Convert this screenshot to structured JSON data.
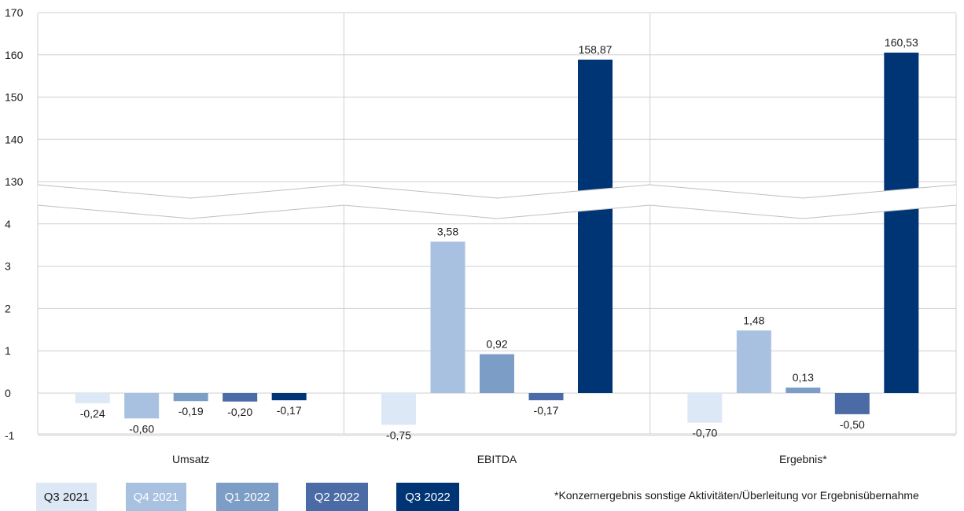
{
  "chart_data": {
    "type": "bar",
    "categories": [
      "Umsatz",
      "EBITDA",
      "Ergebnis*"
    ],
    "series": [
      {
        "name": "Q3 2021",
        "color": "#dde8f6",
        "values": [
          -0.24,
          -0.75,
          -0.7
        ],
        "labels": [
          "-0,24",
          "-0,75",
          "-0,70"
        ]
      },
      {
        "name": "Q4 2021",
        "color": "#a9c1e1",
        "values": [
          -0.6,
          3.58,
          1.48
        ],
        "labels": [
          "-0,60",
          "3,58",
          "1,48"
        ]
      },
      {
        "name": "Q1 2022",
        "color": "#7b9dc6",
        "values": [
          -0.19,
          0.92,
          0.13
        ],
        "labels": [
          "-0,19",
          "0,92",
          "0,13"
        ]
      },
      {
        "name": "Q2 2022",
        "color": "#4a6ba6",
        "values": [
          -0.2,
          -0.17,
          -0.5
        ],
        "labels": [
          "-0,20",
          "-0,17",
          "-0,50"
        ]
      },
      {
        "name": "Q3 2022",
        "color": "#003575",
        "values": [
          -0.17,
          158.87,
          160.53
        ],
        "labels": [
          "-0,17",
          "158,87",
          "160,53"
        ]
      }
    ],
    "yticks_lower": [
      "-1",
      "0",
      "1",
      "2",
      "3",
      "4"
    ],
    "yticks_upper": [
      "130",
      "140",
      "150",
      "160",
      "170"
    ],
    "axis_break": {
      "lower_range": [
        -1,
        4
      ],
      "upper_range": [
        130,
        170
      ]
    },
    "grid": true,
    "legend_position": "bottom-left",
    "footnote": "*Konzernergebnis sonstige Aktivitäten/Überleitung vor Ergebnisübernahme",
    "legend_text_colors": [
      "#1a1a1a",
      "#ffffff",
      "#ffffff",
      "#ffffff",
      "#ffffff"
    ]
  }
}
